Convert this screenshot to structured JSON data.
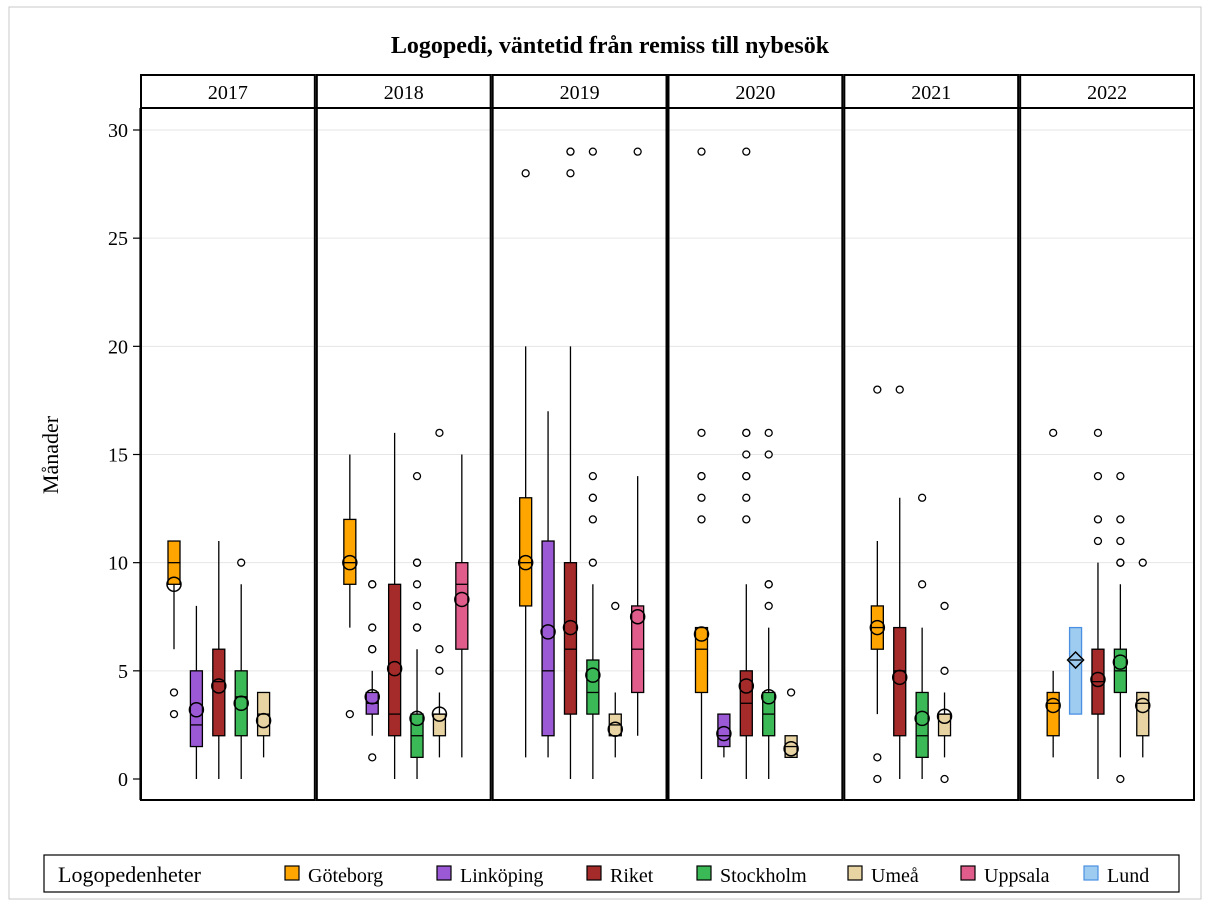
{
  "chart_data": {
    "type": "box",
    "title": "Logopedi, väntetid från remiss till nybesök",
    "ylabel": "Månader",
    "ylim": [
      0,
      30
    ],
    "yticks": [
      0,
      5,
      10,
      15,
      20,
      25,
      30
    ],
    "legend": {
      "title": "Logopedenheter",
      "position": "bottom",
      "items": [
        {
          "name": "Göteborg",
          "color": "#FFA500"
        },
        {
          "name": "Linköping",
          "color": "#9B59D6"
        },
        {
          "name": "Riket",
          "color": "#A52A2A"
        },
        {
          "name": "Stockholm",
          "color": "#3CB957"
        },
        {
          "name": "Umeå",
          "color": "#E8D3A3"
        },
        {
          "name": "Uppsala",
          "color": "#E05C8A"
        },
        {
          "name": "Lund",
          "color": "#9ECBF0",
          "border": "#4A90E2"
        }
      ]
    },
    "panels": [
      {
        "year": "2017",
        "boxes": [
          {
            "unit": "Göteborg",
            "q1": 9,
            "median": 10,
            "q3": 11,
            "mean": 9,
            "whisker_low": 6,
            "whisker_high": 11,
            "outliers": [
              3,
              4
            ]
          },
          {
            "unit": "Linköping",
            "q1": 1.5,
            "median": 2.5,
            "q3": 5,
            "mean": 3.2,
            "whisker_low": 0,
            "whisker_high": 8,
            "outliers": []
          },
          {
            "unit": "Riket",
            "q1": 2,
            "median": 4.5,
            "q3": 6,
            "mean": 4.3,
            "whisker_low": 0,
            "whisker_high": 11,
            "outliers": []
          },
          {
            "unit": "Stockholm",
            "q1": 2,
            "median": 3.8,
            "q3": 5,
            "mean": 3.5,
            "whisker_low": 0,
            "whisker_high": 9,
            "outliers": [
              10
            ]
          },
          {
            "unit": "Umeå",
            "q1": 2,
            "median": 3,
            "q3": 4,
            "mean": 2.7,
            "whisker_low": 1,
            "whisker_high": 4,
            "outliers": []
          }
        ]
      },
      {
        "year": "2018",
        "boxes": [
          {
            "unit": "Göteborg",
            "q1": 9,
            "median": 10,
            "q3": 12,
            "mean": 10,
            "whisker_low": 7,
            "whisker_high": 15,
            "outliers": [
              3
            ]
          },
          {
            "unit": "Linköping",
            "q1": 3,
            "median": 3.5,
            "q3": 4,
            "mean": 3.8,
            "whisker_low": 2,
            "whisker_high": 5,
            "outliers": [
              1,
              6,
              6,
              7,
              9,
              9
            ]
          },
          {
            "unit": "Riket",
            "q1": 2,
            "median": 3,
            "q3": 9,
            "mean": 5.1,
            "whisker_low": 0,
            "whisker_high": 16,
            "outliers": []
          },
          {
            "unit": "Stockholm",
            "q1": 1,
            "median": 2,
            "q3": 3,
            "mean": 2.8,
            "whisker_low": 0,
            "whisker_high": 6,
            "outliers": [
              7,
              7,
              8,
              9,
              10,
              10,
              14
            ]
          },
          {
            "unit": "Umeå",
            "q1": 2,
            "median": 3,
            "q3": 3,
            "mean": 3,
            "whisker_low": 1,
            "whisker_high": 4,
            "outliers": [
              5,
              6,
              16
            ]
          },
          {
            "unit": "Uppsala",
            "q1": 6,
            "median": 9,
            "q3": 10,
            "mean": 8.3,
            "whisker_low": 1,
            "whisker_high": 15,
            "outliers": []
          }
        ]
      },
      {
        "year": "2019",
        "boxes": [
          {
            "unit": "Göteborg",
            "q1": 8,
            "median": 10,
            "q3": 13,
            "mean": 10,
            "whisker_low": 1,
            "whisker_high": 20,
            "outliers": [
              28
            ]
          },
          {
            "unit": "Linköping",
            "q1": 2,
            "median": 5,
            "q3": 11,
            "mean": 6.8,
            "whisker_low": 1,
            "whisker_high": 17,
            "outliers": []
          },
          {
            "unit": "Riket",
            "q1": 3,
            "median": 6,
            "q3": 10,
            "mean": 7,
            "whisker_low": 0,
            "whisker_high": 20,
            "outliers": [
              28,
              29,
              29
            ]
          },
          {
            "unit": "Stockholm",
            "q1": 3,
            "median": 4,
            "q3": 5.5,
            "mean": 4.8,
            "whisker_low": 0,
            "whisker_high": 9,
            "outliers": [
              10,
              12,
              13,
              13,
              14,
              29
            ]
          },
          {
            "unit": "Umeå",
            "q1": 2,
            "median": 2.5,
            "q3": 3,
            "mean": 2.3,
            "whisker_low": 1,
            "whisker_high": 4,
            "outliers": [
              8
            ]
          },
          {
            "unit": "Uppsala",
            "q1": 4,
            "median": 6,
            "q3": 8,
            "mean": 7.5,
            "whisker_low": 2,
            "whisker_high": 14,
            "outliers": [
              29
            ]
          }
        ]
      },
      {
        "year": "2020",
        "boxes": [
          {
            "unit": "Göteborg",
            "q1": 4,
            "median": 6,
            "q3": 7,
            "mean": 6.7,
            "whisker_low": 0,
            "whisker_high": 7,
            "outliers": [
              12,
              13,
              14,
              14,
              16,
              29
            ]
          },
          {
            "unit": "Linköping",
            "q1": 1.5,
            "median": 2,
            "q3": 3,
            "mean": 2.1,
            "whisker_low": 1,
            "whisker_high": 3,
            "outliers": []
          },
          {
            "unit": "Riket",
            "q1": 2,
            "median": 3.5,
            "q3": 5,
            "mean": 4.3,
            "whisker_low": 0,
            "whisker_high": 9,
            "outliers": [
              12,
              13,
              14,
              14,
              15,
              16,
              16,
              29
            ]
          },
          {
            "unit": "Stockholm",
            "q1": 2,
            "median": 3,
            "q3": 4,
            "mean": 3.8,
            "whisker_low": 0,
            "whisker_high": 7,
            "outliers": [
              8,
              9,
              9,
              15,
              16
            ]
          },
          {
            "unit": "Umeå",
            "q1": 1,
            "median": 1.5,
            "q3": 2,
            "mean": 1.4,
            "whisker_low": 1,
            "whisker_high": 2,
            "outliers": [
              4
            ]
          }
        ]
      },
      {
        "year": "2021",
        "boxes": [
          {
            "unit": "Göteborg",
            "q1": 6,
            "median": 7,
            "q3": 8,
            "mean": 7,
            "whisker_low": 3,
            "whisker_high": 11,
            "outliers": [
              0,
              1,
              18
            ]
          },
          {
            "unit": "Riket",
            "q1": 2,
            "median": 5,
            "q3": 7,
            "mean": 4.7,
            "whisker_low": 0,
            "whisker_high": 13,
            "outliers": [
              18
            ]
          },
          {
            "unit": "Stockholm",
            "q1": 1,
            "median": 2,
            "q3": 4,
            "mean": 2.8,
            "whisker_low": 0,
            "whisker_high": 7,
            "outliers": [
              9,
              13
            ]
          },
          {
            "unit": "Umeå",
            "q1": 2,
            "median": 3,
            "q3": 3,
            "mean": 2.9,
            "whisker_low": 1,
            "whisker_high": 4,
            "outliers": [
              0,
              5,
              8
            ]
          }
        ]
      },
      {
        "year": "2022",
        "boxes": [
          {
            "unit": "Göteborg",
            "q1": 2,
            "median": 3.5,
            "q3": 4,
            "mean": 3.4,
            "whisker_low": 1,
            "whisker_high": 5,
            "outliers": [
              16
            ]
          },
          {
            "unit": "Lund",
            "q1": 3,
            "median": 5.5,
            "q3": 7,
            "mean": 5.5,
            "mean_marker": "diamond",
            "whisker_low": 3,
            "whisker_high": 7,
            "outliers": []
          },
          {
            "unit": "Riket",
            "q1": 3,
            "median": 4.5,
            "q3": 6,
            "mean": 4.6,
            "whisker_low": 0,
            "whisker_high": 10,
            "outliers": [
              11,
              12,
              14,
              16
            ]
          },
          {
            "unit": "Stockholm",
            "q1": 4,
            "median": 5,
            "q3": 6,
            "mean": 5.4,
            "whisker_low": 1,
            "whisker_high": 9,
            "outliers": [
              0,
              10,
              10,
              11,
              12,
              14
            ]
          },
          {
            "unit": "Umeå",
            "q1": 2,
            "median": 3.5,
            "q3": 4,
            "mean": 3.4,
            "whisker_low": 1,
            "whisker_high": 4,
            "outliers": [
              10
            ]
          }
        ]
      }
    ]
  }
}
